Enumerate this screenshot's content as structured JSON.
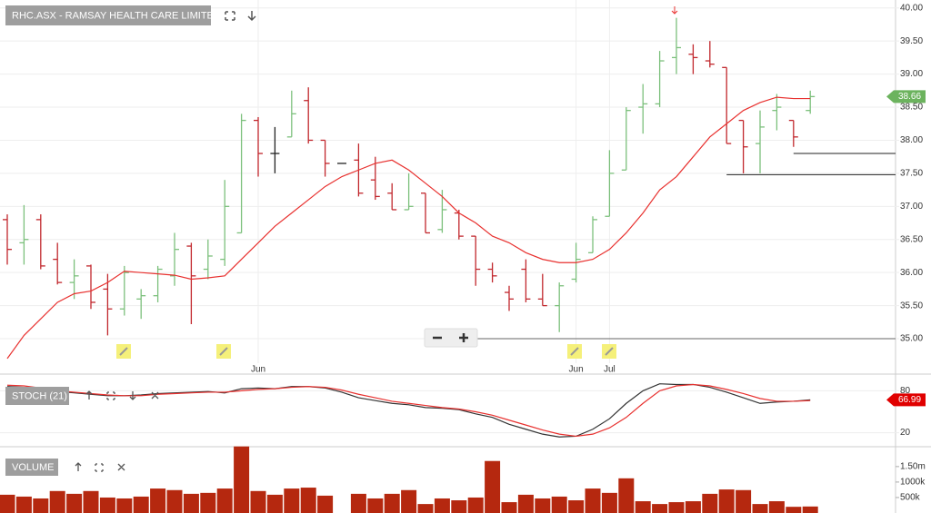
{
  "chart_data": [
    {
      "type": "ohlc",
      "title": "RHC.ASX - RAMSAY HEALTH CARE LIMITED",
      "categories": [
        null,
        null,
        null,
        null,
        null,
        null,
        null,
        null,
        null,
        null,
        null,
        null,
        null,
        null,
        null,
        "Jun",
        null,
        null,
        null,
        null,
        null,
        null,
        null,
        null,
        null,
        null,
        null,
        null,
        null,
        null,
        null,
        null,
        null,
        null,
        "Jun",
        null,
        "Jul",
        null,
        null,
        null,
        null,
        null,
        null,
        null,
        null,
        null,
        null,
        null,
        null
      ],
      "open": [
        36.8,
        36.45,
        36.8,
        36.2,
        35.85,
        36.1,
        35.75,
        35.45,
        35.6,
        35.65,
        35.95,
        36.4,
        36.05,
        36.2,
        36.6,
        38.3,
        37.8,
        38.05,
        38.6,
        38.0,
        37.65,
        37.7,
        37.4,
        37.2,
        36.95,
        37.2,
        36.65,
        36.9,
        36.55,
        36.05,
        35.7,
        36.05,
        35.6,
        35.5,
        35.9,
        36.3,
        36.85,
        37.55,
        38.5,
        38.55,
        39.25,
        39.3,
        39.2,
        39.1,
        38.3,
        37.95,
        38.45,
        38.3,
        38.45
      ],
      "high": [
        36.88,
        37.02,
        36.88,
        36.45,
        36.2,
        36.12,
        35.98,
        36.1,
        35.75,
        36.1,
        36.6,
        36.45,
        36.5,
        37.4,
        38.4,
        38.35,
        38.2,
        38.75,
        38.8,
        38.0,
        37.65,
        37.95,
        37.75,
        37.35,
        37.5,
        37.2,
        37.25,
        36.95,
        36.55,
        36.15,
        35.8,
        36.2,
        35.98,
        35.85,
        36.45,
        36.85,
        37.85,
        38.5,
        38.85,
        39.35,
        39.85,
        39.45,
        39.5,
        39.1,
        38.3,
        38.45,
        38.7,
        38.3,
        38.75
      ],
      "low": [
        36.12,
        36.12,
        36.05,
        35.82,
        35.6,
        35.45,
        35.05,
        35.35,
        35.3,
        35.55,
        35.8,
        35.22,
        35.9,
        36.1,
        36.6,
        37.45,
        37.5,
        38.05,
        37.95,
        37.45,
        37.65,
        37.15,
        37.1,
        36.95,
        36.95,
        36.6,
        36.6,
        36.5,
        35.8,
        35.85,
        35.42,
        35.55,
        35.5,
        35.1,
        35.85,
        36.3,
        36.85,
        37.55,
        38.1,
        38.5,
        39.0,
        39.0,
        39.1,
        37.95,
        37.5,
        37.5,
        38.15,
        37.9,
        38.4
      ],
      "close": [
        36.35,
        36.5,
        36.1,
        35.85,
        35.95,
        35.55,
        35.45,
        36.0,
        35.65,
        36.05,
        36.35,
        35.95,
        36.25,
        37.0,
        38.3,
        37.8,
        37.8,
        38.4,
        38.0,
        37.65,
        37.65,
        37.2,
        37.15,
        36.95,
        37.0,
        36.6,
        36.95,
        36.55,
        36.05,
        35.95,
        35.6,
        35.6,
        35.5,
        35.8,
        36.2,
        36.8,
        37.5,
        38.45,
        38.55,
        39.2,
        39.4,
        39.25,
        39.15,
        37.95,
        37.9,
        38.2,
        38.5,
        38.05,
        38.66
      ],
      "up_color": "#7cc07c",
      "down_color": "#c1272d",
      "flat_color": "#222222",
      "lines": [
        {
          "color": "#e8312f",
          "values": [
            34.7,
            35.05,
            35.3,
            35.55,
            35.68,
            35.72,
            35.85,
            36.02,
            36.0,
            35.98,
            35.96,
            35.9,
            35.92,
            35.95,
            36.2,
            36.45,
            36.7,
            36.9,
            37.1,
            37.3,
            37.45,
            37.55,
            37.65,
            37.7,
            37.55,
            37.35,
            37.15,
            36.9,
            36.75,
            36.55,
            36.45,
            36.3,
            36.2,
            36.15,
            36.15,
            36.2,
            36.35,
            36.6,
            36.9,
            37.25,
            37.45,
            37.75,
            38.05,
            38.25,
            38.45,
            38.57,
            38.65,
            38.63,
            38.63
          ]
        }
      ],
      "hlines": [
        {
          "value": 35.0,
          "start": 25,
          "color": "#666666"
        },
        {
          "value": 37.48,
          "start": 43,
          "color": "#222222"
        },
        {
          "value": 37.8,
          "start": 47,
          "color": "#222222"
        }
      ],
      "last": 38.66,
      "last_color": "#6cb35e",
      "ylim": [
        34.63,
        40.12
      ],
      "yticks": [
        {
          "value": 35,
          "label": "35.00"
        },
        {
          "value": 35.5,
          "label": "35.50"
        },
        {
          "value": 36,
          "label": "36.00"
        },
        {
          "value": 36.5,
          "label": "36.50"
        },
        {
          "value": 37,
          "label": "37.00"
        },
        {
          "value": 37.5,
          "label": "37.50"
        },
        {
          "value": 38,
          "label": "38.00"
        },
        {
          "value": 38.5,
          "label": "38.50"
        },
        {
          "value": 39,
          "label": "39.00"
        },
        {
          "value": 39.5,
          "label": "39.50"
        },
        {
          "value": 40,
          "label": "40.00"
        }
      ]
    },
    {
      "type": "line",
      "title": "STOCH (21)",
      "series": [
        {
          "color": "#333333",
          "values": [
            86,
            85,
            82,
            79,
            77,
            75,
            73,
            73,
            74,
            76,
            77,
            78,
            79,
            77,
            83,
            84,
            83,
            86,
            86,
            84,
            78,
            70,
            66,
            62,
            60,
            56,
            55,
            53,
            47,
            42,
            32,
            25,
            18,
            14,
            15,
            25,
            40,
            62,
            80,
            90,
            89,
            89,
            85,
            78,
            70,
            62,
            64,
            65,
            67
          ]
        },
        {
          "color": "#e8312f",
          "values": [
            88,
            87,
            84,
            80,
            78,
            76,
            74,
            73,
            73,
            75,
            76,
            77,
            78,
            78,
            80,
            82,
            83,
            85,
            86,
            85,
            81,
            75,
            70,
            65,
            62,
            59,
            56,
            54,
            50,
            45,
            38,
            31,
            24,
            18,
            15,
            18,
            27,
            42,
            62,
            80,
            87,
            89,
            87,
            82,
            76,
            69,
            65,
            65,
            66
          ]
        }
      ],
      "last": 66.99,
      "last_color": "#e00000",
      "ylim": [
        0,
        100
      ],
      "yticks": [
        20,
        80
      ]
    },
    {
      "type": "bar",
      "title": "VOLUME",
      "color": "#b5280f",
      "values": [
        590000,
        530000,
        470000,
        710000,
        620000,
        710000,
        500000,
        470000,
        530000,
        790000,
        740000,
        620000,
        650000,
        790000,
        2150000,
        710000,
        590000,
        790000,
        820000,
        560000,
        null,
        620000,
        470000,
        620000,
        740000,
        290000,
        470000,
        410000,
        500000,
        1680000,
        350000,
        590000,
        470000,
        530000,
        410000,
        790000,
        650000,
        1120000,
        380000,
        290000,
        350000,
        380000,
        620000,
        760000,
        740000,
        290000,
        380000,
        200000,
        210000
      ],
      "ylim": [
        0,
        2200000
      ],
      "yticks": [
        {
          "value": 500000,
          "label": "500k"
        },
        {
          "value": 1000000,
          "label": "1000k"
        },
        {
          "value": 1500000,
          "label": "1.50m"
        }
      ]
    }
  ]
}
